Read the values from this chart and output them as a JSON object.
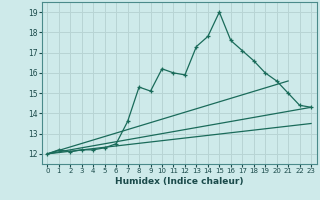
{
  "xlabel": "Humidex (Indice chaleur)",
  "bg_color": "#ceeaea",
  "grid_color": "#b8d4d4",
  "line_color": "#1a6b5a",
  "xlim": [
    -0.5,
    23.5
  ],
  "ylim": [
    11.5,
    19.5
  ],
  "xticks": [
    0,
    1,
    2,
    3,
    4,
    5,
    6,
    7,
    8,
    9,
    10,
    11,
    12,
    13,
    14,
    15,
    16,
    17,
    18,
    19,
    20,
    21,
    22,
    23
  ],
  "yticks": [
    12,
    13,
    14,
    15,
    16,
    17,
    18,
    19
  ],
  "line1_x": [
    0,
    1,
    2,
    3,
    4,
    5,
    6,
    7,
    8,
    9,
    10,
    11,
    12,
    13,
    14,
    15,
    16,
    17,
    18,
    19,
    20,
    21,
    22,
    23
  ],
  "line1_y": [
    12.0,
    12.2,
    12.1,
    12.2,
    12.2,
    12.3,
    12.5,
    13.6,
    15.3,
    15.1,
    16.2,
    16.0,
    15.9,
    17.3,
    17.8,
    19.0,
    17.6,
    17.1,
    16.6,
    16.0,
    15.6,
    15.0,
    14.4,
    14.3
  ],
  "line2_x": [
    0,
    21
  ],
  "line2_y": [
    12.0,
    15.6
  ],
  "line3_x": [
    0,
    23
  ],
  "line3_y": [
    12.0,
    14.3
  ],
  "line4_x": [
    0,
    23
  ],
  "line4_y": [
    12.0,
    13.5
  ]
}
